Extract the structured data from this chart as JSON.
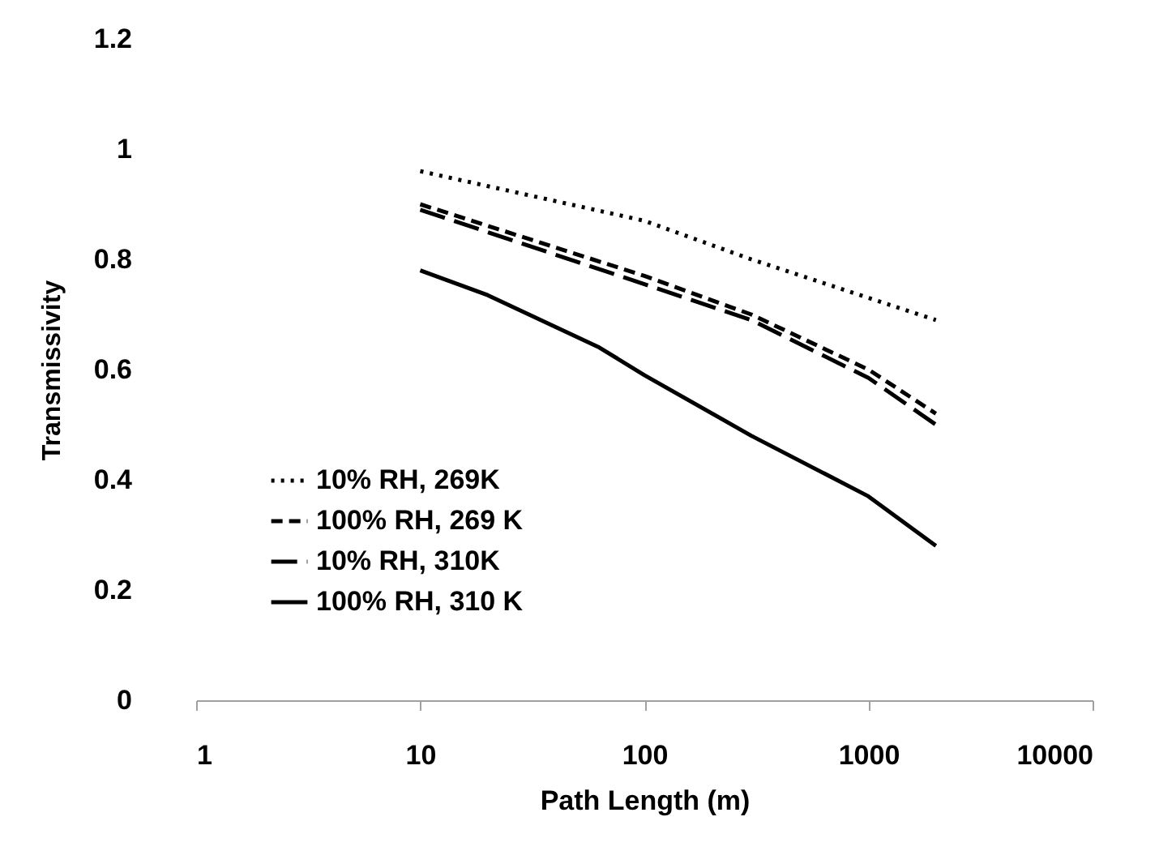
{
  "chart_data": {
    "type": "line",
    "xlabel": "Path Length (m)",
    "ylabel": "Transmissivity",
    "log": "x",
    "xlim": [
      1,
      10000
    ],
    "xticks": [
      1,
      10,
      100,
      1000,
      10000
    ],
    "ylim": [
      0,
      1.2
    ],
    "yticks": [
      0,
      0.2,
      0.4,
      0.6,
      0.8,
      1,
      1.2
    ],
    "grid": false,
    "legend": "bottom left",
    "marker": "none",
    "series": [
      {
        "name": "10% RH, 269K",
        "color": "#000000",
        "line_style": "dotted",
        "x": [
          10,
          100,
          300,
          1000,
          2000
        ],
        "values": [
          0.96,
          0.87,
          0.8,
          0.73,
          0.69
        ]
      },
      {
        "name": "100% RH, 269 K",
        "color": "#000000",
        "line_style": "dashed",
        "x": [
          10,
          100,
          300,
          1000,
          2000
        ],
        "values": [
          0.9,
          0.77,
          0.7,
          0.6,
          0.52
        ]
      },
      {
        "name": "10% RH, 310K",
        "color": "#000000",
        "line_style": "dashed",
        "x": [
          10,
          100,
          300,
          1000,
          2000
        ],
        "values": [
          0.89,
          0.755,
          0.69,
          0.585,
          0.5
        ]
      },
      {
        "name": "100% RH, 310 K",
        "color": "#000000",
        "line_style": "solid",
        "x": [
          10,
          20,
          63,
          100,
          300,
          1000,
          2000
        ],
        "values": [
          0.78,
          0.735,
          0.64,
          0.59,
          0.48,
          0.37,
          0.28
        ]
      }
    ]
  }
}
